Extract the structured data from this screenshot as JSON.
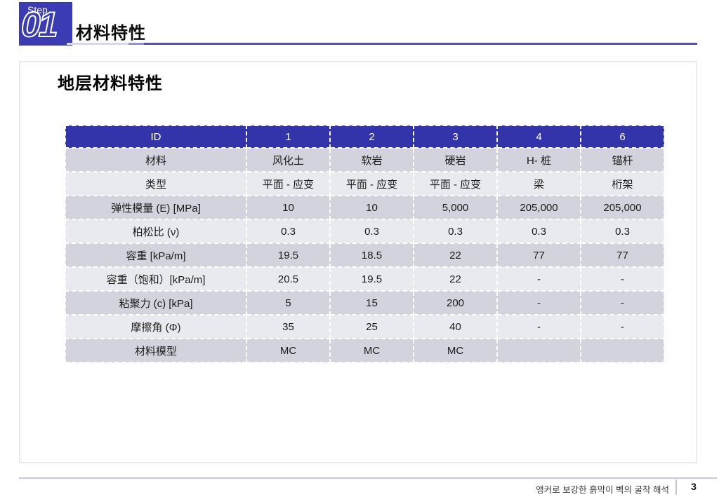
{
  "slide": {
    "step": {
      "label": "Step",
      "number": "01"
    },
    "title": "材料特性",
    "section_heading": "地层材料特性"
  },
  "table": {
    "header": {
      "id_label": "ID",
      "columns": [
        "1",
        "2",
        "3",
        "4",
        "6"
      ]
    },
    "rows": [
      {
        "label": "材料",
        "cells": [
          "风化土",
          "软岩",
          "硬岩",
          "H- 桩",
          "锚杆"
        ]
      },
      {
        "label": "类型",
        "cells": [
          "平面 - 应变",
          "平面 - 应变",
          "平面 - 应变",
          "梁",
          "桁架"
        ]
      },
      {
        "label": "弹性模量 (E) [MPa]",
        "cells": [
          "10",
          "10",
          "5,000",
          "205,000",
          "205,000"
        ]
      },
      {
        "label": "柏松比 (ν)",
        "cells": [
          "0.3",
          "0.3",
          "0.3",
          "0.3",
          "0.3"
        ]
      },
      {
        "label": "容重 [kPa/m]",
        "cells": [
          "19.5",
          "18.5",
          "22",
          "77",
          "77"
        ]
      },
      {
        "label": "容重（饱和）[kPa/m]",
        "cells": [
          "20.5",
          "19.5",
          "22",
          "-",
          "-"
        ]
      },
      {
        "label": "粘聚力 (c) [kPa]",
        "cells": [
          "5",
          "15",
          "200",
          "-",
          "-"
        ]
      },
      {
        "label": "摩擦角 (Φ)",
        "cells": [
          "35",
          "25",
          "40",
          "-",
          "-"
        ]
      },
      {
        "label": "材料模型",
        "cells": [
          "MC",
          "MC",
          "MC",
          "",
          ""
        ]
      }
    ]
  },
  "footer": {
    "caption": "앵커로 보강한 흙막이 벽의 굴착 해석",
    "page_number": "3"
  },
  "colors": {
    "step-blue": "#3b3bb3",
    "header-blue": "#3434aa",
    "row-dark": "#d3d3de",
    "row-light": "#e9e9f0",
    "line-purple": "#5252b2",
    "line-lavender": "#d8d8f1",
    "footer-line": "#c9c6e6",
    "frame-border": "#e7ecea"
  }
}
